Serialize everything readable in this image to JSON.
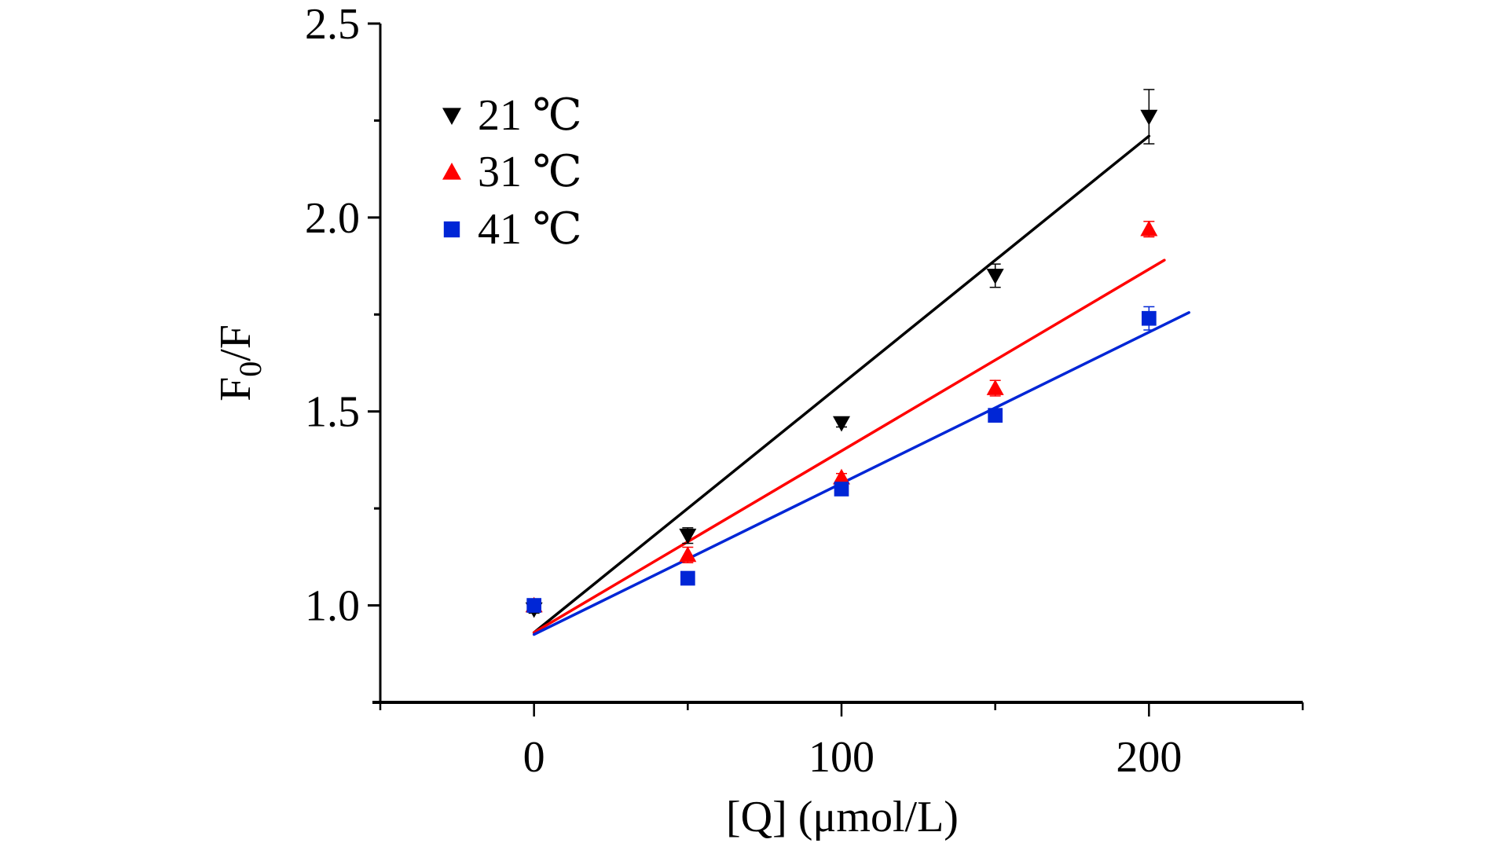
{
  "chart_data": {
    "type": "scatter",
    "title": "",
    "xlabel": "[Q] (μmol/L)",
    "ylabel_main": "F",
    "ylabel_sub": "0",
    "ylabel_tail": "/F",
    "ylabel": "F0/F",
    "xlim": [
      -50,
      250
    ],
    "ylim": [
      0.75,
      2.5
    ],
    "x_major_ticks": [
      0,
      100,
      200
    ],
    "x_major_tick_labels": [
      "0",
      "100",
      "200"
    ],
    "x_minor_ticks": [
      -50,
      50,
      150,
      250
    ],
    "y_major_ticks": [
      1.0,
      1.5,
      2.0,
      2.5
    ],
    "y_major_tick_labels": [
      "1.0",
      "1.5",
      "2.0",
      "2.5"
    ],
    "y_minor_ticks": [
      0.75,
      1.25,
      1.75,
      2.25
    ],
    "grid": false,
    "legend_position": "top-left",
    "series": [
      {
        "name": "21 ℃",
        "color": "#000000",
        "marker": "triangle-down",
        "x": [
          0,
          50,
          100,
          150,
          200
        ],
        "y": [
          0.99,
          1.18,
          1.47,
          1.85,
          2.26
        ],
        "error": [
          0.01,
          0.02,
          0.01,
          0.03,
          0.07
        ],
        "fit_line": {
          "x": [
            0,
            200
          ],
          "y": [
            0.93,
            2.21
          ]
        }
      },
      {
        "name": "31 ℃",
        "color": "#ff0000",
        "marker": "triangle-up",
        "x": [
          0,
          50,
          100,
          150,
          200
        ],
        "y": [
          1.0,
          1.13,
          1.33,
          1.56,
          1.97
        ],
        "error": [
          0.01,
          0.02,
          0.01,
          0.02,
          0.02
        ],
        "fit_line": {
          "x": [
            0,
            205
          ],
          "y": [
            0.93,
            1.89
          ]
        }
      },
      {
        "name": "41 ℃",
        "color": "#0026d6",
        "marker": "square",
        "x": [
          0,
          50,
          100,
          150,
          200
        ],
        "y": [
          1.0,
          1.07,
          1.3,
          1.49,
          1.74
        ],
        "error": [
          0.01,
          0.01,
          0.01,
          0.01,
          0.03
        ],
        "fit_line": {
          "x": [
            0,
            213
          ],
          "y": [
            0.925,
            1.755
          ]
        }
      }
    ]
  }
}
